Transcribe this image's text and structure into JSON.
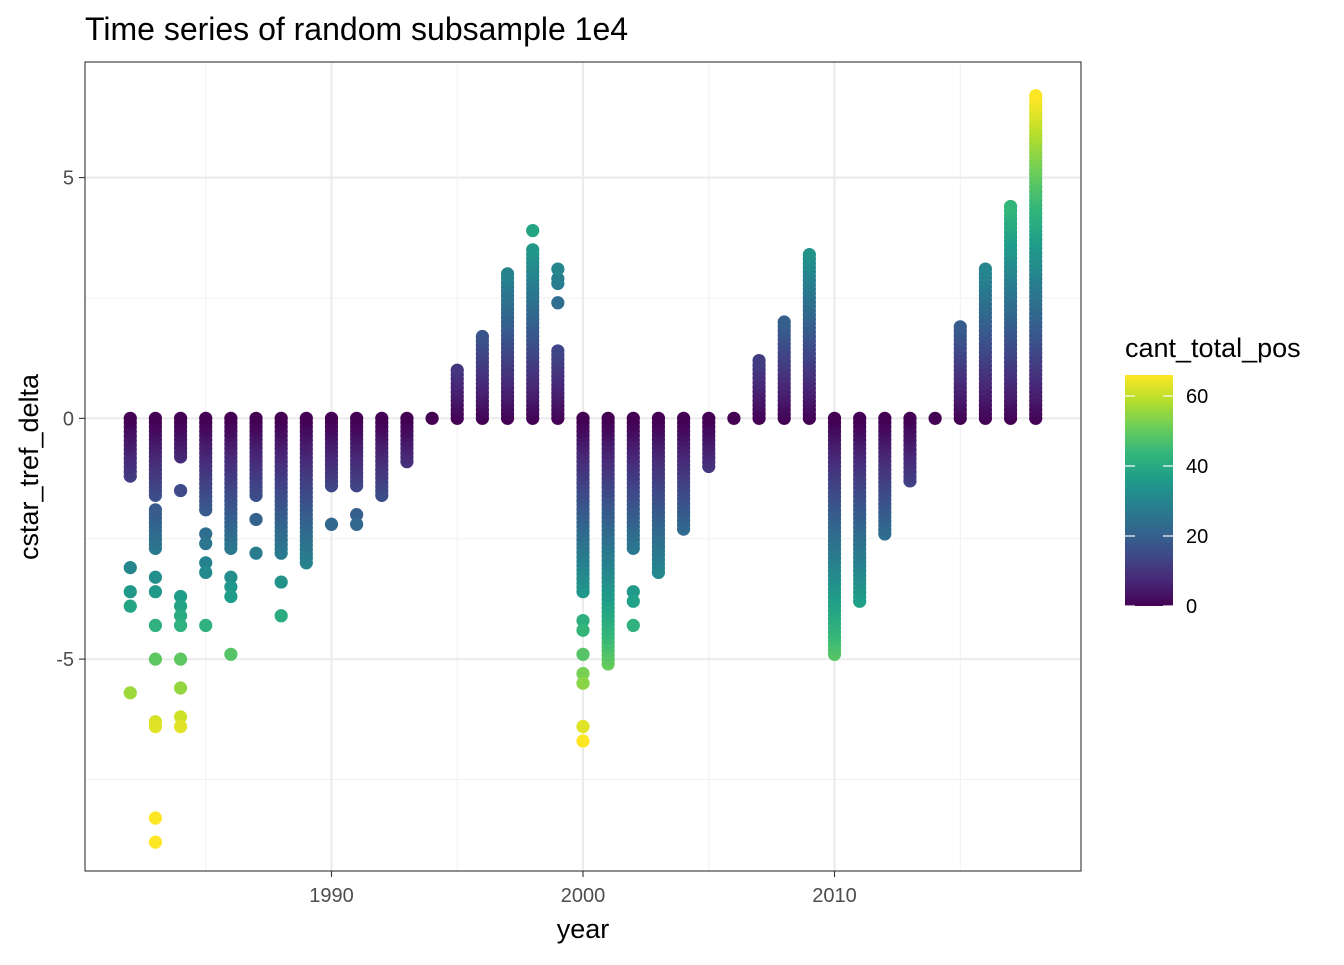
{
  "chart_data": {
    "type": "scatter",
    "title": "Time series of random subsample 1e4",
    "xlabel": "year",
    "ylabel": "cstar_tref_delta",
    "xlim": [
      1980.2,
      2019.8
    ],
    "ylim": [
      -9.4,
      7.4
    ],
    "x_ticks": [
      1990,
      2000,
      2010
    ],
    "x_tick_labels": [
      "1990",
      "2000",
      "2010"
    ],
    "y_ticks": [
      5,
      0,
      -5
    ],
    "y_tick_labels": [
      "5",
      "0",
      "-5"
    ],
    "grid": true,
    "legend": {
      "title": "cant_total_pos",
      "position": "right",
      "type": "colorbar",
      "palette": "viridis",
      "min": 0,
      "max": 66,
      "ticks": [
        0,
        20,
        40,
        60
      ],
      "tick_labels": [
        "0",
        "20",
        "40",
        "60"
      ]
    },
    "columns": [
      {
        "x": 1982,
        "min": -1.2,
        "max": 0.0
      },
      {
        "x": 1982,
        "values": [
          -3.1,
          -3.6,
          -3.9,
          -5.7
        ]
      },
      {
        "x": 1983,
        "min": -1.6,
        "max": 0.0
      },
      {
        "x": 1983,
        "min": -2.7,
        "max": -1.9
      },
      {
        "x": 1983,
        "values": [
          -3.3,
          -3.6,
          -4.3,
          -5.0,
          -6.3,
          -6.4,
          -8.3,
          -8.8
        ]
      },
      {
        "x": 1984,
        "min": -0.8,
        "max": 0.0
      },
      {
        "x": 1984,
        "values": [
          -1.5,
          -3.7,
          -3.9,
          -4.1,
          -4.3,
          -5.0,
          -5.6,
          -6.2,
          -6.4
        ]
      },
      {
        "x": 1985,
        "min": -1.9,
        "max": 0.0
      },
      {
        "x": 1985,
        "values": [
          -2.4,
          -2.6,
          -3.0,
          -3.2,
          -4.3
        ]
      },
      {
        "x": 1986,
        "min": -2.7,
        "max": 0.0
      },
      {
        "x": 1986,
        "values": [
          -3.3,
          -3.5,
          -3.7,
          -4.9
        ]
      },
      {
        "x": 1987,
        "min": -1.6,
        "max": 0.0
      },
      {
        "x": 1987,
        "values": [
          -2.1,
          -2.8
        ]
      },
      {
        "x": 1988,
        "min": -2.8,
        "max": 0.0
      },
      {
        "x": 1988,
        "values": [
          -3.4,
          -4.1
        ]
      },
      {
        "x": 1989,
        "min": -3.0,
        "max": 0.0
      },
      {
        "x": 1990,
        "min": -1.4,
        "max": 0.0
      },
      {
        "x": 1990,
        "values": [
          -2.2
        ]
      },
      {
        "x": 1991,
        "min": -1.4,
        "max": 0.0
      },
      {
        "x": 1991,
        "values": [
          -2.0,
          -2.2
        ]
      },
      {
        "x": 1992,
        "min": -1.6,
        "max": 0.0
      },
      {
        "x": 1993,
        "min": -0.9,
        "max": 0.0
      },
      {
        "x": 1994,
        "min": 0.0,
        "max": 0.0
      },
      {
        "x": 1995,
        "min": 0.0,
        "max": 1.0
      },
      {
        "x": 1996,
        "min": 0.0,
        "max": 1.7
      },
      {
        "x": 1997,
        "min": 0.0,
        "max": 3.0
      },
      {
        "x": 1998,
        "min": 0.0,
        "max": 3.5
      },
      {
        "x": 1998,
        "values": [
          3.9
        ]
      },
      {
        "x": 1999,
        "min": 0.0,
        "max": 1.4
      },
      {
        "x": 1999,
        "values": [
          2.4,
          2.8,
          2.9,
          3.1
        ]
      },
      {
        "x": 2000,
        "min": -3.6,
        "max": 0.0
      },
      {
        "x": 2000,
        "values": [
          -4.2,
          -4.4,
          -4.9,
          -5.3,
          -5.5,
          -6.4,
          -6.7
        ]
      },
      {
        "x": 2001,
        "min": -5.1,
        "max": 0.0
      },
      {
        "x": 2002,
        "min": -2.7,
        "max": 0.0
      },
      {
        "x": 2002,
        "values": [
          -3.6,
          -3.8,
          -4.3
        ]
      },
      {
        "x": 2003,
        "min": -3.2,
        "max": 0.0
      },
      {
        "x": 2004,
        "min": -2.3,
        "max": 0.0
      },
      {
        "x": 2005,
        "min": -1.0,
        "max": 0.0
      },
      {
        "x": 2006,
        "min": 0.0,
        "max": 0.0
      },
      {
        "x": 2007,
        "min": 0.0,
        "max": 1.2
      },
      {
        "x": 2008,
        "min": 0.0,
        "max": 2.0
      },
      {
        "x": 2009,
        "min": 0.0,
        "max": 3.4
      },
      {
        "x": 2010,
        "min": -4.9,
        "max": 0.0
      },
      {
        "x": 2011,
        "min": -3.8,
        "max": 0.0
      },
      {
        "x": 2012,
        "min": -2.4,
        "max": 0.0
      },
      {
        "x": 2013,
        "min": -1.3,
        "max": 0.0
      },
      {
        "x": 2014,
        "min": 0.0,
        "max": 0.0
      },
      {
        "x": 2015,
        "min": 0.0,
        "max": 1.9
      },
      {
        "x": 2016,
        "min": 0.0,
        "max": 3.1
      },
      {
        "x": 2017,
        "min": 0.0,
        "max": 4.4
      },
      {
        "x": 2018,
        "min": 0.0,
        "max": 6.7
      }
    ]
  }
}
